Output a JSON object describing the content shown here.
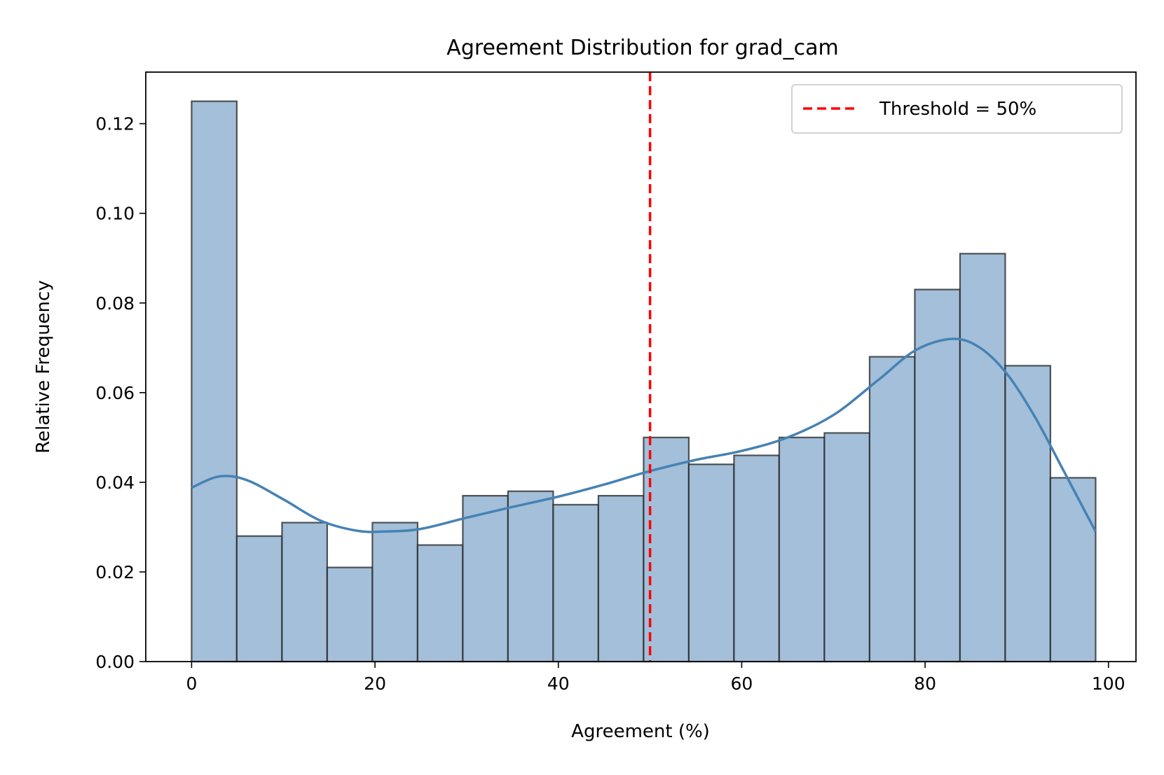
{
  "colors": {
    "bar_fill": "#a3bfd9",
    "kde_line": "#4682b4",
    "threshold_line": "#ff0000"
  },
  "chart_data": {
    "type": "bar",
    "title": "Agreement Distribution for grad_cam",
    "xlabel": "Agreement (%)",
    "ylabel": "Relative Frequency",
    "xlim": [
      -5,
      103
    ],
    "ylim": [
      0,
      0.1315
    ],
    "xticks": [
      0,
      20,
      40,
      60,
      80,
      100
    ],
    "xtick_labels": [
      "0",
      "20",
      "40",
      "60",
      "80",
      "100"
    ],
    "yticks": [
      0.0,
      0.02,
      0.04,
      0.06,
      0.08,
      0.1,
      0.12
    ],
    "ytick_labels": [
      "0.00",
      "0.02",
      "0.04",
      "0.06",
      "0.08",
      "0.10",
      "0.12"
    ],
    "grid": false,
    "legend_position": "top-right",
    "bins": {
      "start": 0,
      "width": 4.93,
      "values": [
        0.125,
        0.028,
        0.031,
        0.021,
        0.031,
        0.026,
        0.037,
        0.038,
        0.035,
        0.037,
        0.05,
        0.044,
        0.046,
        0.05,
        0.051,
        0.068,
        0.083,
        0.091,
        0.066,
        0.041
      ]
    },
    "kde": {
      "x": [
        0,
        3,
        6,
        10,
        14,
        18,
        21,
        25,
        30,
        35,
        40,
        45,
        50,
        55,
        60,
        65,
        70,
        75,
        79,
        83,
        86,
        89,
        92,
        95,
        98.6
      ],
      "y": [
        0.0388,
        0.0413,
        0.0405,
        0.0362,
        0.0315,
        0.0292,
        0.029,
        0.0296,
        0.0321,
        0.0345,
        0.0368,
        0.0395,
        0.0425,
        0.045,
        0.047,
        0.05,
        0.055,
        0.063,
        0.0695,
        0.072,
        0.07,
        0.064,
        0.0545,
        0.043,
        0.029
      ]
    },
    "threshold": {
      "x": 50,
      "label": "Threshold = 50%"
    }
  }
}
